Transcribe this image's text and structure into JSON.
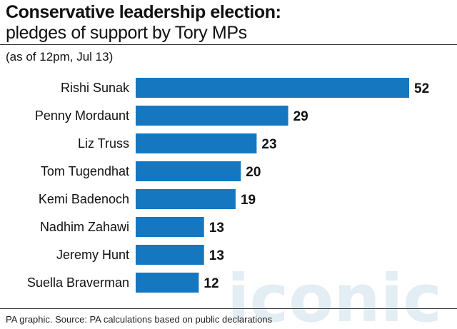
{
  "header": {
    "title": "Conservative leadership election:",
    "subtitle": "pledges of support by Tory MPs",
    "note": "(as of 12pm, Jul 13)"
  },
  "footer": {
    "source": "PA graphic. Source: PA calculations based on public declarations"
  },
  "watermark": {
    "text": "iconic",
    "color": "#cfe0ec"
  },
  "colors": {
    "bar": "#1577bf",
    "text": "#111111",
    "rule": "#333333"
  },
  "chart_data": {
    "type": "bar",
    "orientation": "horizontal",
    "categories": [
      "Rishi Sunak",
      "Penny Mordaunt",
      "Liz Truss",
      "Tom Tugendhat",
      "Kemi Badenoch",
      "Nadhim Zahawi",
      "Jeremy Hunt",
      "Suella Braverman"
    ],
    "values": [
      52,
      29,
      23,
      20,
      19,
      13,
      13,
      12
    ],
    "title": "Conservative leadership election: pledges of support by Tory MPs",
    "xlabel": "",
    "ylabel": "",
    "xlim": [
      0,
      52
    ],
    "grid": false,
    "legend": "none"
  }
}
